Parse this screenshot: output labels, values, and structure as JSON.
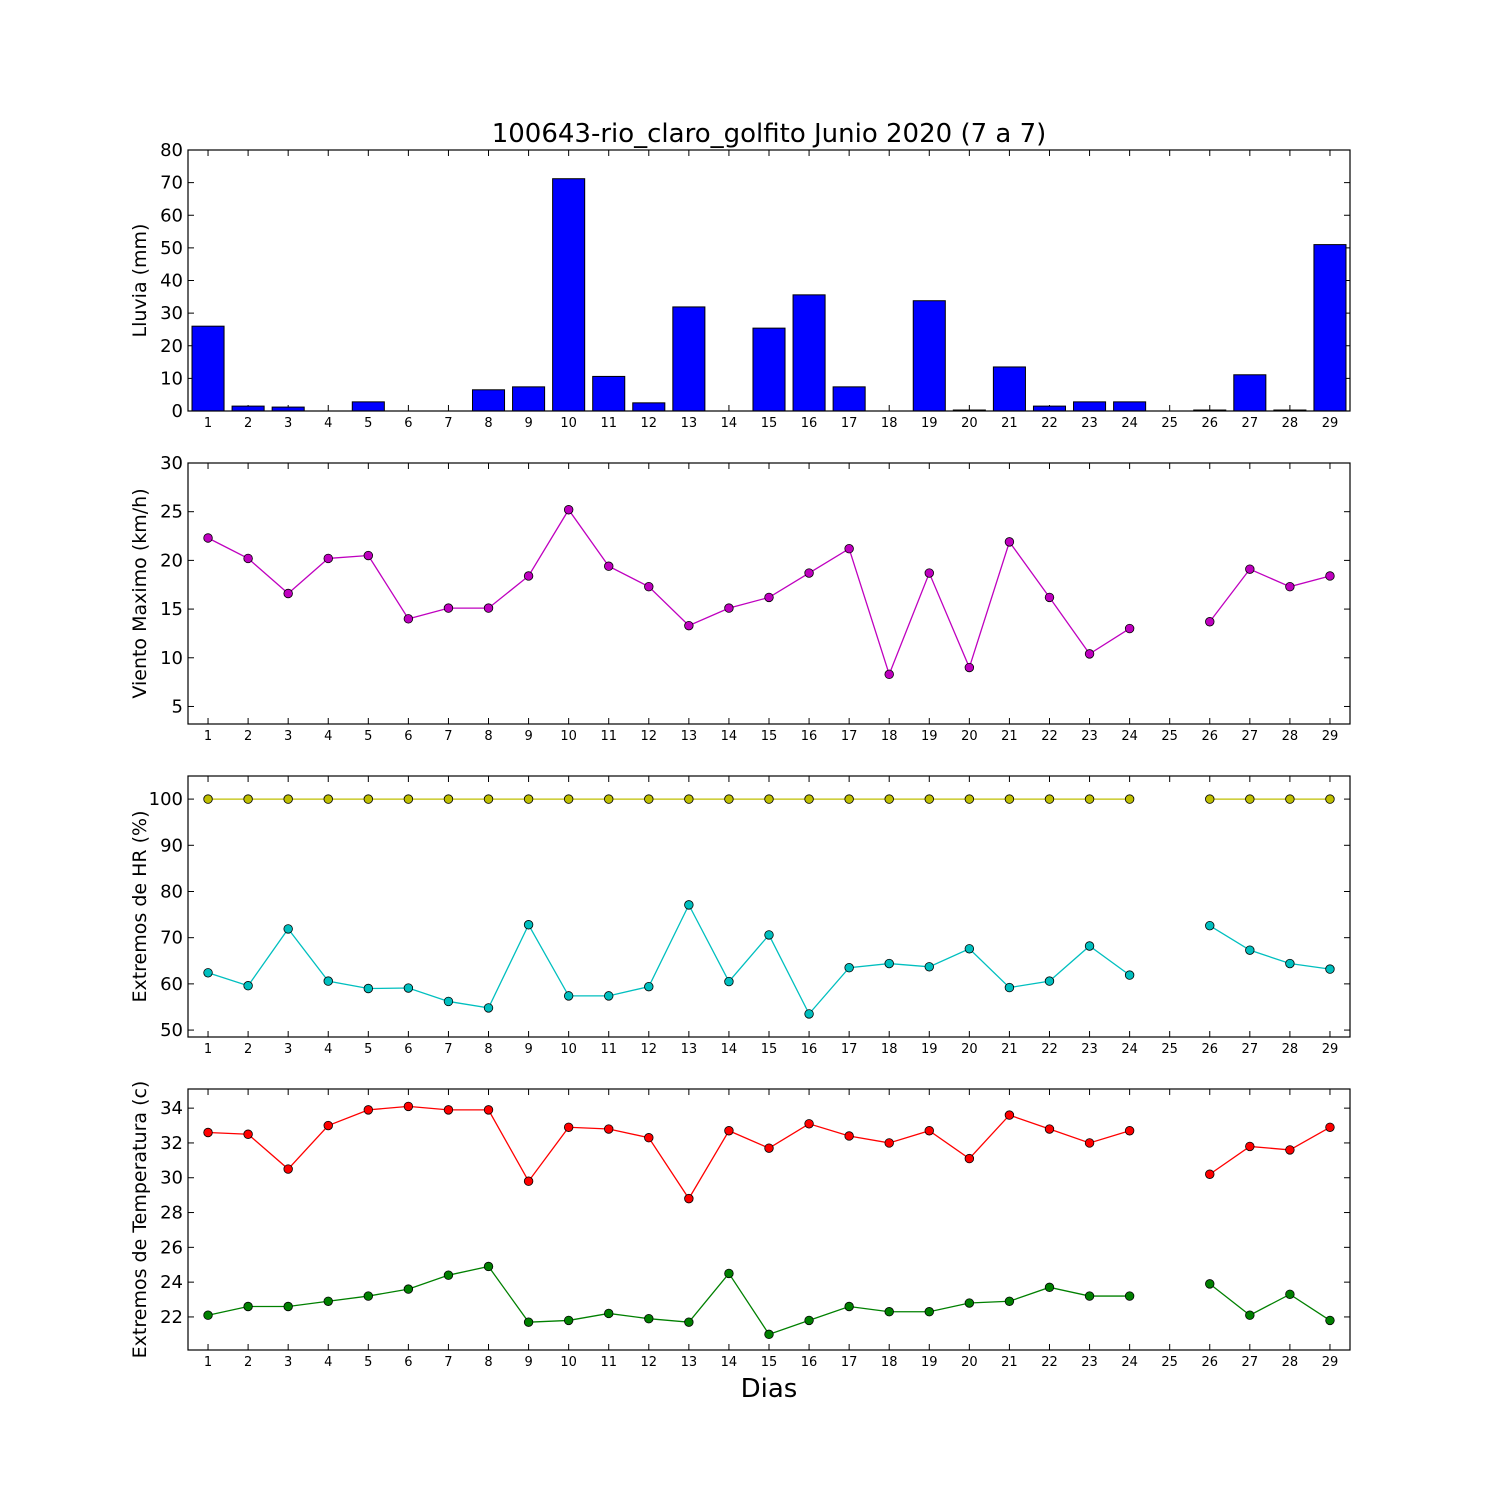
{
  "title": "100643-rio_claro_golfito Junio 2020  (7 a 7)",
  "xlabel": "Dias",
  "colors": {
    "bar_fill": "#0000ff",
    "wind": "#bf00bf",
    "hr_max": "#bfbf00",
    "hr_min": "#00bfbf",
    "temp_max": "#ff0000",
    "temp_min": "#008000"
  },
  "chart_data": [
    {
      "type": "bar",
      "ylabel": "Lluvia (mm)",
      "ylim": [
        0,
        80
      ],
      "yticks": [
        0,
        10,
        20,
        30,
        40,
        50,
        60,
        70,
        80
      ],
      "categories": [
        1,
        2,
        3,
        4,
        5,
        6,
        7,
        8,
        9,
        10,
        11,
        12,
        13,
        14,
        15,
        16,
        17,
        18,
        19,
        20,
        21,
        22,
        23,
        24,
        25,
        26,
        27,
        28,
        29
      ],
      "values": [
        26,
        1.5,
        1.2,
        0,
        2.8,
        0,
        0,
        6.5,
        7.4,
        71.2,
        10.6,
        2.5,
        31.9,
        0,
        25.4,
        35.6,
        7.4,
        0,
        33.8,
        0.3,
        13.5,
        1.5,
        2.8,
        2.8,
        null,
        0.3,
        11.1,
        0.3,
        51
      ]
    },
    {
      "type": "line",
      "ylabel": "Viento Maximo (km/h)",
      "ylim": [
        3.2,
        30
      ],
      "yticks": [
        5,
        10,
        15,
        20,
        25,
        30
      ],
      "x": [
        1,
        2,
        3,
        4,
        5,
        6,
        7,
        8,
        9,
        10,
        11,
        12,
        13,
        14,
        15,
        16,
        17,
        18,
        19,
        20,
        21,
        22,
        23,
        24,
        25,
        26,
        27,
        28,
        29
      ],
      "series": [
        {
          "color_key": "wind",
          "values": [
            22.3,
            20.2,
            16.6,
            20.2,
            20.5,
            14.0,
            15.1,
            15.1,
            18.4,
            25.2,
            19.4,
            17.3,
            13.3,
            15.1,
            16.2,
            18.7,
            21.2,
            8.3,
            18.7,
            9.0,
            21.9,
            16.2,
            10.4,
            13.0,
            null,
            13.7,
            19.1,
            17.3,
            18.4
          ]
        }
      ]
    },
    {
      "type": "line",
      "ylabel": "Extremos de HR (%)",
      "ylim": [
        48.5,
        105
      ],
      "yticks": [
        50,
        60,
        70,
        80,
        90,
        100
      ],
      "x": [
        1,
        2,
        3,
        4,
        5,
        6,
        7,
        8,
        9,
        10,
        11,
        12,
        13,
        14,
        15,
        16,
        17,
        18,
        19,
        20,
        21,
        22,
        23,
        24,
        25,
        26,
        27,
        28,
        29
      ],
      "series": [
        {
          "color_key": "hr_max",
          "values": [
            100,
            100,
            100,
            100,
            100,
            100,
            100,
            100,
            100,
            100,
            100,
            100,
            100,
            100,
            100,
            100,
            100,
            100,
            100,
            100,
            100,
            100,
            100,
            100,
            null,
            100,
            100,
            100,
            100
          ]
        },
        {
          "color_key": "hr_min",
          "values": [
            62.4,
            59.6,
            71.9,
            60.6,
            59.0,
            59.1,
            56.2,
            54.8,
            72.8,
            57.4,
            57.4,
            59.4,
            77.1,
            60.5,
            70.6,
            53.5,
            63.5,
            64.4,
            63.7,
            67.6,
            59.2,
            60.6,
            68.2,
            61.9,
            null,
            72.6,
            67.3,
            64.4,
            63.2
          ]
        }
      ]
    },
    {
      "type": "line",
      "ylabel": "Extremos de Temperatura (c)",
      "ylim": [
        20.1,
        35.1
      ],
      "yticks": [
        22,
        24,
        26,
        28,
        30,
        32,
        34
      ],
      "x": [
        1,
        2,
        3,
        4,
        5,
        6,
        7,
        8,
        9,
        10,
        11,
        12,
        13,
        14,
        15,
        16,
        17,
        18,
        19,
        20,
        21,
        22,
        23,
        24,
        25,
        26,
        27,
        28,
        29
      ],
      "series": [
        {
          "color_key": "temp_max",
          "values": [
            32.6,
            32.5,
            30.5,
            33.0,
            33.9,
            34.1,
            33.9,
            33.9,
            29.8,
            32.9,
            32.8,
            32.3,
            28.8,
            32.7,
            31.7,
            33.1,
            32.4,
            32.0,
            32.7,
            31.1,
            33.6,
            32.8,
            32.0,
            32.7,
            null,
            30.2,
            31.8,
            31.6,
            32.9
          ]
        },
        {
          "color_key": "temp_min",
          "values": [
            22.1,
            22.6,
            22.6,
            22.9,
            23.2,
            23.6,
            24.4,
            24.9,
            21.7,
            21.8,
            22.2,
            21.9,
            21.7,
            24.5,
            21.0,
            21.8,
            22.6,
            22.3,
            22.3,
            22.8,
            22.9,
            23.7,
            23.2,
            23.2,
            null,
            23.9,
            22.1,
            23.3,
            21.8
          ]
        }
      ]
    }
  ]
}
